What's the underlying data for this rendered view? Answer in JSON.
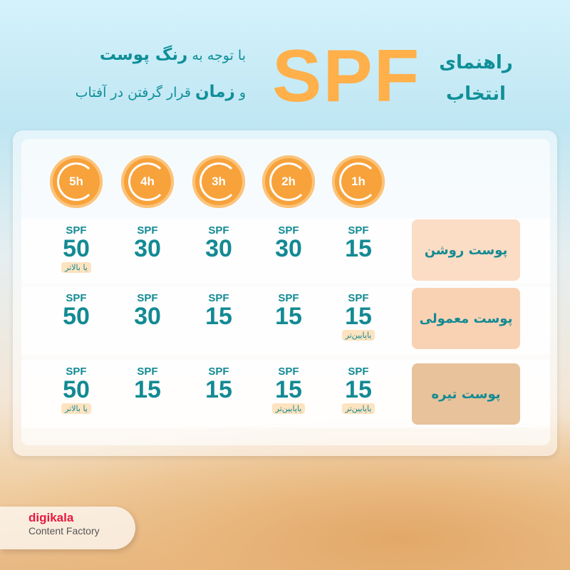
{
  "header": {
    "title_line1": "راهنمای",
    "title_line2": "انتخاب",
    "spf": "SPF",
    "subtitle_line1_a": "با توجه به",
    "subtitle_line1_b": "رنگ پوست",
    "subtitle_line2_a": "و",
    "subtitle_line2_b": "زمان",
    "subtitle_line2_c": "قرار گرفتن در آفتاب"
  },
  "colors": {
    "accent": "#138a93",
    "orange": "#f7a23b",
    "spf_title": "#ffb04a",
    "light": "#fbdcc4",
    "normal": "#f9d2b4",
    "dark": "#e8c29a"
  },
  "hours": [
    "1h",
    "2h",
    "3h",
    "4h",
    "5h"
  ],
  "spf_label": "SPF",
  "rows": [
    {
      "label": "پوست روشن",
      "cells": [
        {
          "v": "15"
        },
        {
          "v": "30"
        },
        {
          "v": "30"
        },
        {
          "v": "30"
        },
        {
          "v": "50",
          "note": "یا بالاتر"
        }
      ]
    },
    {
      "label": "پوست معمولی",
      "cells": [
        {
          "v": "15",
          "note": "یاپایین‌تر"
        },
        {
          "v": "15"
        },
        {
          "v": "15"
        },
        {
          "v": "30"
        },
        {
          "v": "50"
        }
      ]
    },
    {
      "label": "پوست تیره",
      "cells": [
        {
          "v": "15",
          "note": "یاپایین‌تر"
        },
        {
          "v": "15",
          "note": "یاپایین‌تر"
        },
        {
          "v": "15"
        },
        {
          "v": "15"
        },
        {
          "v": "50",
          "note": "یا بالاتر"
        }
      ]
    }
  ],
  "logo": {
    "brand": "digikala",
    "sub": "Content Factory"
  }
}
